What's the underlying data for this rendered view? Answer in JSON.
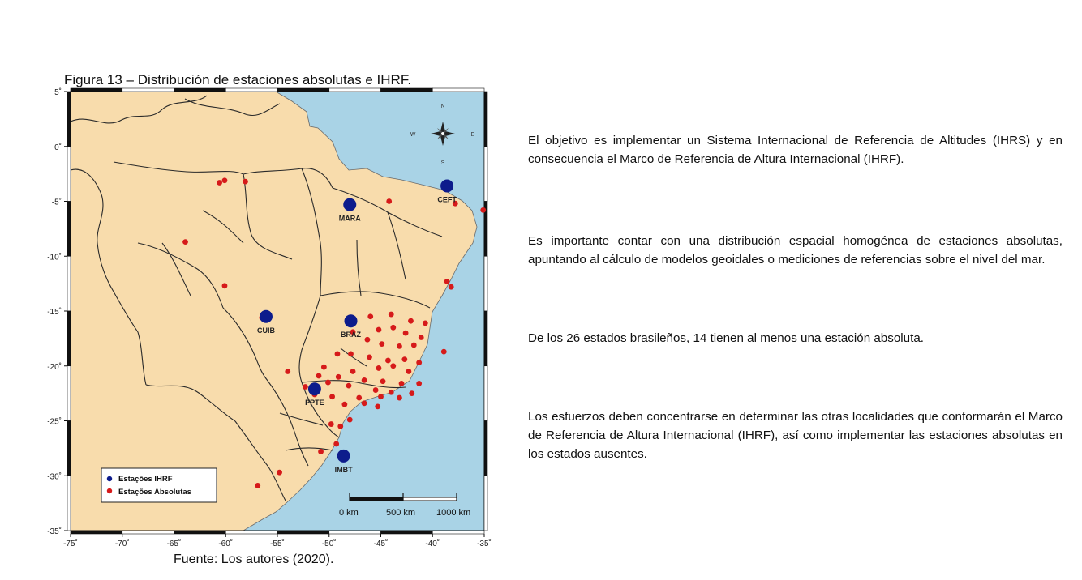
{
  "figure": {
    "title": "Figura 13 – Distribución de estaciones absolutas e IHRF.",
    "source": "Fuente: Los autores (2020)."
  },
  "map": {
    "lon_range": [
      -75,
      -35
    ],
    "lat_range": [
      -35,
      5
    ],
    "lon_ticks": [
      {
        "value": -75,
        "label": "-75˚"
      },
      {
        "value": -70,
        "label": "-70˚"
      },
      {
        "value": -65,
        "label": "-65˚"
      },
      {
        "value": -60,
        "label": "-60˚"
      },
      {
        "value": -55,
        "label": "-55˚"
      },
      {
        "value": -50,
        "label": "-50˚"
      },
      {
        "value": -45,
        "label": "-45˚"
      },
      {
        "value": -40,
        "label": "-40˚"
      },
      {
        "value": -35,
        "label": "-35˚"
      }
    ],
    "lat_ticks": [
      {
        "value": 5,
        "label": "5˚"
      },
      {
        "value": 0,
        "label": "0˚"
      },
      {
        "value": -5,
        "label": "-5˚"
      },
      {
        "value": -10,
        "label": "-10˚"
      },
      {
        "value": -15,
        "label": "-15˚"
      },
      {
        "value": -20,
        "label": "-20˚"
      },
      {
        "value": -25,
        "label": "-25˚"
      },
      {
        "value": -30,
        "label": "-30˚"
      },
      {
        "value": -35,
        "label": "-35˚"
      }
    ],
    "colors": {
      "ocean": "#a9d3e6",
      "land": "#f8dcac",
      "border": "#2a2a2a",
      "ihrf": "#0d1c8c",
      "absolute": "#d61a1a"
    },
    "compass": {
      "n": "N",
      "s": "S",
      "e": "E",
      "w": "W"
    },
    "ihrf_stations": [
      {
        "name": "MARA",
        "lon": -48.0,
        "lat": -5.3
      },
      {
        "name": "CEFT",
        "lon": -38.6,
        "lat": -3.6
      },
      {
        "name": "CUIB",
        "lon": -56.1,
        "lat": -15.5
      },
      {
        "name": "BRAZ",
        "lon": -47.9,
        "lat": -15.9
      },
      {
        "name": "PPTE",
        "lon": -51.4,
        "lat": -22.1
      },
      {
        "name": "IMBT",
        "lon": -48.6,
        "lat": -28.2
      }
    ],
    "absolute_stations": [
      {
        "lon": -60.1,
        "lat": -3.1
      },
      {
        "lon": -60.6,
        "lat": -3.3
      },
      {
        "lon": -58.1,
        "lat": -3.2
      },
      {
        "lon": -44.2,
        "lat": -5.0
      },
      {
        "lon": -37.8,
        "lat": -5.2
      },
      {
        "lon": -35.1,
        "lat": -5.8
      },
      {
        "lon": -63.9,
        "lat": -8.7
      },
      {
        "lon": -38.6,
        "lat": -12.3
      },
      {
        "lon": -38.2,
        "lat": -12.8
      },
      {
        "lon": -60.1,
        "lat": -12.7
      },
      {
        "lon": -56.5,
        "lat": -15.6
      },
      {
        "lon": -47.9,
        "lat": -15.8
      },
      {
        "lon": -46.0,
        "lat": -15.5
      },
      {
        "lon": -44.0,
        "lat": -15.3
      },
      {
        "lon": -42.1,
        "lat": -15.9
      },
      {
        "lon": -40.7,
        "lat": -16.1
      },
      {
        "lon": -47.7,
        "lat": -16.9
      },
      {
        "lon": -45.2,
        "lat": -16.7
      },
      {
        "lon": -43.8,
        "lat": -16.5
      },
      {
        "lon": -42.6,
        "lat": -17.0
      },
      {
        "lon": -41.1,
        "lat": -17.4
      },
      {
        "lon": -46.3,
        "lat": -17.6
      },
      {
        "lon": -44.9,
        "lat": -18.0
      },
      {
        "lon": -43.2,
        "lat": -18.2
      },
      {
        "lon": -41.8,
        "lat": -18.1
      },
      {
        "lon": -38.9,
        "lat": -18.7
      },
      {
        "lon": -47.9,
        "lat": -18.9
      },
      {
        "lon": -49.2,
        "lat": -18.9
      },
      {
        "lon": -46.1,
        "lat": -19.2
      },
      {
        "lon": -44.3,
        "lat": -19.5
      },
      {
        "lon": -42.7,
        "lat": -19.4
      },
      {
        "lon": -41.3,
        "lat": -19.7
      },
      {
        "lon": -50.5,
        "lat": -20.1
      },
      {
        "lon": -45.2,
        "lat": -20.2
      },
      {
        "lon": -43.8,
        "lat": -20.0
      },
      {
        "lon": -42.3,
        "lat": -20.5
      },
      {
        "lon": -47.7,
        "lat": -20.5
      },
      {
        "lon": -54.0,
        "lat": -20.5
      },
      {
        "lon": -49.1,
        "lat": -21.0
      },
      {
        "lon": -51.0,
        "lat": -20.9
      },
      {
        "lon": -46.6,
        "lat": -21.3
      },
      {
        "lon": -44.8,
        "lat": -21.4
      },
      {
        "lon": -43.0,
        "lat": -21.6
      },
      {
        "lon": -41.3,
        "lat": -21.6
      },
      {
        "lon": -52.3,
        "lat": -21.9
      },
      {
        "lon": -50.1,
        "lat": -21.5
      },
      {
        "lon": -48.1,
        "lat": -21.8
      },
      {
        "lon": -45.5,
        "lat": -22.2
      },
      {
        "lon": -44.0,
        "lat": -22.4
      },
      {
        "lon": -42.0,
        "lat": -22.5
      },
      {
        "lon": -51.4,
        "lat": -22.6
      },
      {
        "lon": -49.7,
        "lat": -22.8
      },
      {
        "lon": -47.1,
        "lat": -22.9
      },
      {
        "lon": -45.0,
        "lat": -22.8
      },
      {
        "lon": -43.2,
        "lat": -22.9
      },
      {
        "lon": -46.6,
        "lat": -23.4
      },
      {
        "lon": -48.5,
        "lat": -23.5
      },
      {
        "lon": -45.3,
        "lat": -23.7
      },
      {
        "lon": -49.8,
        "lat": -25.3
      },
      {
        "lon": -48.9,
        "lat": -25.5
      },
      {
        "lon": -48.0,
        "lat": -24.9
      },
      {
        "lon": -49.3,
        "lat": -27.1
      },
      {
        "lon": -50.8,
        "lat": -27.8
      },
      {
        "lon": -54.8,
        "lat": -29.7
      },
      {
        "lon": -56.9,
        "lat": -30.9
      }
    ],
    "legend": {
      "ihrf_label": "Estações IHRF",
      "absolute_label": "Estações Absolutas"
    },
    "scale_bar": {
      "label_0": "0 km",
      "label_500": "500 km",
      "label_1000": "1000 km"
    }
  },
  "paragraphs": {
    "p1": "El objetivo es implementar un Sistema Internacional de Referencia de Altitudes (IHRS) y en consecuencia el Marco de Referencia de Altura Internacional (IHRF).",
    "p2": "Es importante contar con una distribución espacial homogénea de estaciones absolutas, apuntando al cálculo de modelos geoidales o mediciones de referencias sobre el nivel del mar.",
    "p3": "De los 26 estados brasileños, 14 tienen al menos una estación absoluta.",
    "p4": "Los esfuerzos deben concentrarse en determinar las otras localidades que conformarán el Marco de Referencia de Altura Internacional (IHRF), así como implementar las estaciones absolutas en los estados ausentes."
  }
}
